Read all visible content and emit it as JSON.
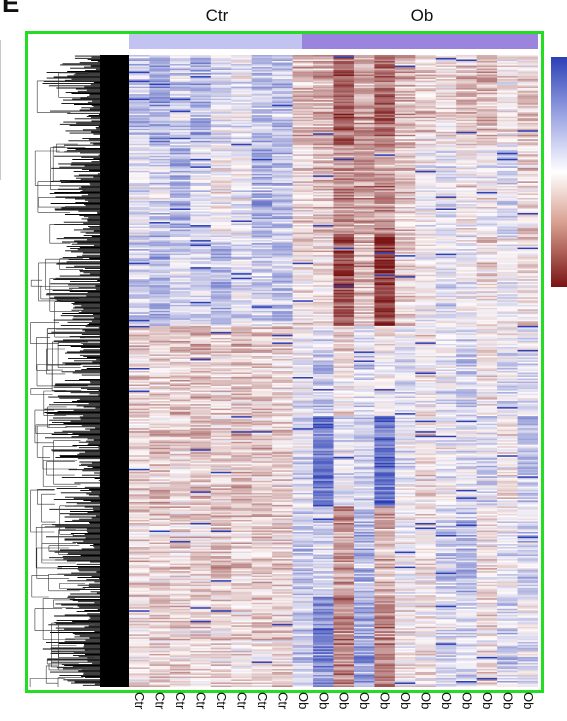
{
  "panel": {
    "letter": "E"
  },
  "groups": [
    {
      "name": "Ctr",
      "color": "#c3c3f2"
    },
    {
      "name": "Ob",
      "color": "#9b84dd"
    }
  ],
  "frame_color": "#22dd22",
  "column_labels": [
    "Ctr",
    "Ctr",
    "Ctr",
    "Ctr",
    "Ctr",
    "Ctr",
    "Ctr",
    "Ctr",
    "Ob",
    "Ob",
    "Ob",
    "Ob",
    "Ob",
    "Ob",
    "Ob",
    "Ob",
    "Ob",
    "Ob",
    "Ob",
    "Ob"
  ],
  "chart_data": {
    "type": "heatmap",
    "columns": [
      "Ctr",
      "Ctr",
      "Ctr",
      "Ctr",
      "Ctr",
      "Ctr",
      "Ctr",
      "Ctr",
      "Ob",
      "Ob",
      "Ob",
      "Ob",
      "Ob",
      "Ob",
      "Ob",
      "Ob",
      "Ob",
      "Ob",
      "Ob",
      "Ob"
    ],
    "column_groups": [
      "Ctr",
      "Ob"
    ],
    "colorscale": [
      "#2b3fb6",
      "#ffffff",
      "#7a1414"
    ],
    "row_dendrogram": true,
    "legend": "colorbar right",
    "cluster_means": [
      [
        -0.5,
        -0.8,
        -0.4,
        -0.7,
        -0.3,
        -0.2,
        -0.6,
        -0.5,
        0.5,
        0.6,
        1.2,
        0.7,
        1.1,
        0.5,
        0.3,
        0.2,
        0.4,
        0.5,
        0.1,
        0.3
      ],
      [
        -0.2,
        -0.3,
        -0.6,
        -0.2,
        0.0,
        -0.1,
        -0.6,
        -0.5,
        0.3,
        0.4,
        0.8,
        0.7,
        0.8,
        0.4,
        0.0,
        -0.2,
        0.1,
        0.0,
        -0.3,
        0.3
      ],
      [
        -0.4,
        -0.6,
        -0.3,
        -0.3,
        -0.6,
        -0.2,
        -0.4,
        -0.5,
        0.2,
        0.3,
        1.4,
        0.6,
        1.6,
        0.4,
        0.1,
        -0.2,
        -0.1,
        0.2,
        -0.1,
        0.2
      ],
      [
        0.3,
        0.3,
        0.4,
        0.5,
        0.3,
        0.4,
        0.4,
        0.3,
        -0.1,
        -0.4,
        0.2,
        -0.3,
        0.0,
        -0.3,
        0.1,
        -0.2,
        -0.4,
        0.1,
        -0.2,
        -0.3
      ],
      [
        0.3,
        0.4,
        0.3,
        0.4,
        0.3,
        0.5,
        0.4,
        0.3,
        -0.3,
        -1.2,
        -0.2,
        -0.4,
        -1.3,
        -0.2,
        0.2,
        -0.1,
        -0.2,
        -0.3,
        0.1,
        -0.5
      ],
      [
        0.3,
        0.2,
        0.3,
        0.3,
        0.4,
        0.3,
        0.3,
        0.3,
        -0.5,
        -0.3,
        0.7,
        -0.6,
        0.6,
        -0.1,
        0.1,
        -0.4,
        -0.6,
        0.2,
        -0.2,
        -0.4
      ],
      [
        0.2,
        0.3,
        0.3,
        0.2,
        0.3,
        0.2,
        0.3,
        0.3,
        -0.4,
        -1.0,
        0.9,
        -0.8,
        0.9,
        0.1,
        0.1,
        -0.3,
        -0.3,
        0.2,
        -0.4,
        -0.2
      ]
    ]
  }
}
